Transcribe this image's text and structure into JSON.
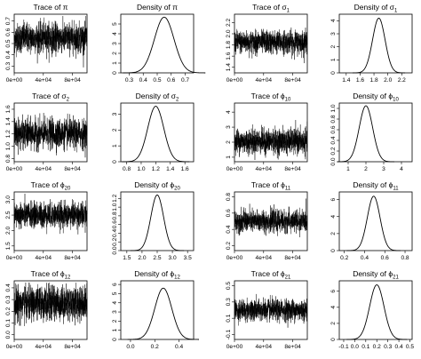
{
  "chart_data": [
    {
      "type": "line",
      "kind": "trace",
      "title": "Trace of π",
      "title_main": "Trace of ",
      "title_base": "π",
      "title_sub": "",
      "x_ticks": [
        "0e+00",
        "4e+04",
        "8e+04"
      ],
      "x_tick_values": [
        0,
        40000,
        80000
      ],
      "xlim": [
        0,
        100000
      ],
      "y_ticks": [
        "0.3",
        "0.4",
        "0.5",
        "0.6",
        "0.7"
      ],
      "y_tick_values": [
        0.3,
        0.4,
        0.5,
        0.6,
        0.7
      ],
      "ylim": [
        0.24,
        0.76
      ],
      "mean": 0.55,
      "sd": 0.065
    },
    {
      "type": "line",
      "kind": "density",
      "title": "Density of π",
      "title_main": "Density of ",
      "title_base": "π",
      "title_sub": "",
      "x_ticks": [
        "0.3",
        "0.4",
        "0.5",
        "0.6",
        "0.7"
      ],
      "x_tick_values": [
        0.3,
        0.4,
        0.5,
        0.6,
        0.7
      ],
      "xlim": [
        0.24,
        0.76
      ],
      "y_ticks": [
        "0",
        "1",
        "2",
        "3",
        "4",
        "5"
      ],
      "y_tick_values": [
        0,
        1,
        2,
        3,
        4,
        5
      ],
      "ylim": [
        0,
        6.0
      ],
      "mean": 0.55,
      "sd": 0.07,
      "peak": 5.7
    },
    {
      "type": "line",
      "kind": "trace",
      "title": "Trace of σ1",
      "title_main": "Trace of ",
      "title_base": "σ",
      "title_sub": "1",
      "x_ticks": [
        "0e+00",
        "4e+04",
        "8e+04"
      ],
      "x_tick_values": [
        0,
        40000,
        80000
      ],
      "xlim": [
        0,
        100000
      ],
      "y_ticks": [
        "1.4",
        "1.6",
        "1.8",
        "2.0",
        "2.2"
      ],
      "y_tick_values": [
        1.4,
        1.6,
        1.8,
        2.0,
        2.2
      ],
      "ylim": [
        1.3,
        2.35
      ],
      "mean": 1.85,
      "sd": 0.1
    },
    {
      "type": "line",
      "kind": "density",
      "title": "Density of σ1",
      "title_main": "Density of ",
      "title_base": "σ",
      "title_sub": "1",
      "x_ticks": [
        "1.4",
        "1.6",
        "1.8",
        "2.0",
        "2.2"
      ],
      "x_tick_values": [
        1.4,
        1.6,
        1.8,
        2.0,
        2.2
      ],
      "xlim": [
        1.3,
        2.35
      ],
      "y_ticks": [
        "0",
        "1",
        "2",
        "3",
        "4"
      ],
      "y_tick_values": [
        0,
        1,
        2,
        3,
        4
      ],
      "ylim": [
        0,
        4.5
      ],
      "mean": 1.87,
      "sd": 0.09,
      "peak": 4.2
    },
    {
      "type": "line",
      "kind": "trace",
      "title": "Trace of σ2",
      "title_main": "Trace of ",
      "title_base": "σ",
      "title_sub": "2",
      "x_ticks": [
        "0e+00",
        "4e+04",
        "8e+04"
      ],
      "x_tick_values": [
        0,
        40000,
        80000
      ],
      "xlim": [
        0,
        100000
      ],
      "y_ticks": [
        "0.8",
        "1.0",
        "1.2",
        "1.4",
        "1.6"
      ],
      "y_tick_values": [
        0.8,
        1.0,
        1.2,
        1.4,
        1.6
      ],
      "ylim": [
        0.75,
        1.7
      ],
      "mean": 1.2,
      "sd": 0.115
    },
    {
      "type": "line",
      "kind": "density",
      "title": "Density of σ2",
      "title_main": "Density of ",
      "title_base": "σ",
      "title_sub": "2",
      "x_ticks": [
        "0.8",
        "1.0",
        "1.2",
        "1.4",
        "1.6"
      ],
      "x_tick_values": [
        0.8,
        1.0,
        1.2,
        1.4,
        1.6
      ],
      "xlim": [
        0.72,
        1.72
      ],
      "y_ticks": [
        "0",
        "1",
        "2",
        "3"
      ],
      "y_tick_values": [
        0,
        1,
        2,
        3
      ],
      "ylim": [
        0,
        3.7
      ],
      "mean": 1.2,
      "sd": 0.11,
      "peak": 3.5
    },
    {
      "type": "line",
      "kind": "trace",
      "title": "Trace of ϕ10",
      "title_main": "Trace of ",
      "title_base": "ϕ",
      "title_sub": "10",
      "x_ticks": [
        "0e+00",
        "4e+04",
        "8e+04"
      ],
      "x_tick_values": [
        0,
        40000,
        80000
      ],
      "xlim": [
        0,
        100000
      ],
      "y_ticks": [
        "1",
        "2",
        "3",
        "4"
      ],
      "y_tick_values": [
        1,
        2,
        3,
        4
      ],
      "ylim": [
        0.7,
        4.6
      ],
      "mean": 2.05,
      "sd": 0.4
    },
    {
      "type": "line",
      "kind": "density",
      "title": "Density of ϕ10",
      "title_main": "Density of ",
      "title_base": "ϕ",
      "title_sub": "10",
      "x_ticks": [
        "1",
        "2",
        "3",
        "4"
      ],
      "x_tick_values": [
        1,
        2,
        3,
        4
      ],
      "xlim": [
        0.5,
        4.6
      ],
      "y_ticks": [
        "0.0",
        "0.2",
        "0.4",
        "0.6",
        "0.8",
        "1.0"
      ],
      "y_tick_values": [
        0.0,
        0.2,
        0.4,
        0.6,
        0.8,
        1.0
      ],
      "ylim": [
        0,
        1.1
      ],
      "mean": 2.0,
      "sd": 0.38,
      "peak": 1.05
    },
    {
      "type": "line",
      "kind": "trace",
      "title": "Trace of ϕ20",
      "title_main": "Trace of ",
      "title_base": "ϕ",
      "title_sub": "20",
      "x_ticks": [
        "0e+00",
        "4e+04",
        "8e+04"
      ],
      "x_tick_values": [
        0,
        40000,
        80000
      ],
      "xlim": [
        0,
        100000
      ],
      "y_ticks": [
        "1.5",
        "2.0",
        "2.5",
        "3.0"
      ],
      "y_tick_values": [
        1.5,
        2.0,
        2.5,
        3.0
      ],
      "ylim": [
        1.35,
        3.25
      ],
      "mean": 2.5,
      "sd": 0.2
    },
    {
      "type": "line",
      "kind": "density",
      "title": "Density of ϕ20",
      "title_main": "Density of ",
      "title_base": "ϕ",
      "title_sub": "20",
      "x_ticks": [
        "1.5",
        "2.0",
        "2.5",
        "3.0",
        "3.5"
      ],
      "x_tick_values": [
        1.5,
        2.0,
        2.5,
        3.0,
        3.5
      ],
      "xlim": [
        1.3,
        3.7
      ],
      "y_ticks": [
        "0.0",
        "0.2",
        "0.4",
        "0.6",
        "0.8",
        "1.0",
        "1.2"
      ],
      "y_tick_values": [
        0.0,
        0.2,
        0.4,
        0.6,
        0.8,
        1.0,
        1.2
      ],
      "ylim": [
        0,
        1.35
      ],
      "mean": 2.5,
      "sd": 0.21,
      "peak": 1.28
    },
    {
      "type": "line",
      "kind": "trace",
      "title": "Trace of ϕ11",
      "title_main": "Trace of ",
      "title_base": "ϕ",
      "title_sub": "11",
      "x_ticks": [
        "0e+00",
        "4e+04",
        "8e+04"
      ],
      "x_tick_values": [
        0,
        40000,
        80000
      ],
      "xlim": [
        0,
        100000
      ],
      "y_ticks": [
        "0.2",
        "0.4",
        "0.6",
        "0.8"
      ],
      "y_tick_values": [
        0.2,
        0.4,
        0.6,
        0.8
      ],
      "ylim": [
        0.14,
        0.86
      ],
      "mean": 0.5,
      "sd": 0.065
    },
    {
      "type": "line",
      "kind": "density",
      "title": "Density of ϕ11",
      "title_main": "Density of ",
      "title_base": "ϕ",
      "title_sub": "11",
      "x_ticks": [
        "0.2",
        "0.4",
        "0.6",
        "0.8"
      ],
      "x_tick_values": [
        0.2,
        0.4,
        0.6,
        0.8
      ],
      "xlim": [
        0.15,
        0.87
      ],
      "y_ticks": [
        "0",
        "2",
        "4",
        "6"
      ],
      "y_tick_values": [
        0,
        2,
        4,
        6
      ],
      "ylim": [
        0,
        6.9
      ],
      "mean": 0.49,
      "sd": 0.063,
      "peak": 6.4
    },
    {
      "type": "line",
      "kind": "trace",
      "title": "Trace of ϕ12",
      "title_main": "Trace of ",
      "title_base": "ϕ",
      "title_sub": "12",
      "x_ticks": [
        "0e+00",
        "4e+04",
        "8e+04"
      ],
      "x_tick_values": [
        0,
        40000,
        80000
      ],
      "xlim": [
        0,
        100000
      ],
      "y_ticks": [
        "0.0",
        "0.1",
        "0.2",
        "0.3",
        "0.4"
      ],
      "y_tick_values": [
        0.0,
        0.1,
        0.2,
        0.3,
        0.4
      ],
      "ylim": [
        -0.04,
        0.46
      ],
      "mean": 0.27,
      "sd": 0.07
    },
    {
      "type": "line",
      "kind": "density",
      "title": "Density of ϕ12",
      "title_main": "Density of ",
      "title_base": "ϕ",
      "title_sub": "12",
      "x_ticks": [
        "0.0",
        "0.2",
        "0.4"
      ],
      "x_tick_values": [
        0.0,
        0.2,
        0.4
      ],
      "xlim": [
        -0.08,
        0.52
      ],
      "y_ticks": [
        "0",
        "1",
        "2",
        "3",
        "4",
        "5",
        "6"
      ],
      "y_tick_values": [
        0,
        1,
        2,
        3,
        4,
        5,
        6
      ],
      "ylim": [
        0,
        6.4
      ],
      "mean": 0.27,
      "sd": 0.07,
      "peak": 5.6
    },
    {
      "type": "line",
      "kind": "trace",
      "title": "Trace of ϕ21",
      "title_main": "Trace of ",
      "title_base": "ϕ",
      "title_sub": "21",
      "x_ticks": [
        "0e+00",
        "4e+04",
        "8e+04"
      ],
      "x_tick_values": [
        0,
        40000,
        80000
      ],
      "xlim": [
        0,
        100000
      ],
      "y_ticks": [
        "-0.1",
        "0.1",
        "0.3",
        "0.5"
      ],
      "y_tick_values": [
        -0.1,
        0.1,
        0.3,
        0.5
      ],
      "ylim": [
        -0.16,
        0.56
      ],
      "mean": 0.2,
      "sd": 0.065
    },
    {
      "type": "line",
      "kind": "density",
      "title": "Density of ϕ21",
      "title_main": "Density of ",
      "title_base": "ϕ",
      "title_sub": "21",
      "x_ticks": [
        "-0.1",
        "0.0",
        "0.1",
        "0.2",
        "0.3",
        "0.4",
        "0.5"
      ],
      "x_tick_values": [
        -0.1,
        0.0,
        0.1,
        0.2,
        0.3,
        0.4,
        0.5
      ],
      "xlim": [
        -0.14,
        0.52
      ],
      "y_ticks": [
        "0",
        "2",
        "4",
        "6"
      ],
      "y_tick_values": [
        0,
        2,
        4,
        6
      ],
      "ylim": [
        0,
        7.3
      ],
      "mean": 0.2,
      "sd": 0.065,
      "peak": 6.8
    }
  ]
}
